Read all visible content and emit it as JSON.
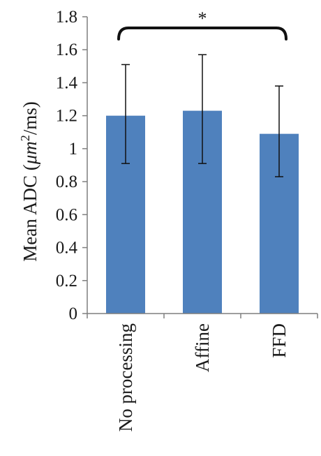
{
  "chart_data": {
    "type": "bar",
    "categories": [
      "No processing",
      "Affine",
      "FFD"
    ],
    "values": [
      1.2,
      1.23,
      1.09
    ],
    "error_low": [
      0.91,
      0.91,
      0.83
    ],
    "error_high": [
      1.51,
      1.57,
      1.38
    ],
    "ylabel_main": "Mean ADC (",
    "ylabel_unit": "μm",
    "ylabel_sup": "2",
    "ylabel_tail": "/ms)",
    "ylim": [
      0,
      1.8
    ],
    "yticks": [
      "0",
      "0.2",
      "0.4",
      "0.6",
      "0.8",
      "1",
      "1.2",
      "1.4",
      "1.6",
      "1.8"
    ],
    "bar_color": "#4f81bd",
    "grid": false,
    "significance": {
      "from": "No processing",
      "to": "FFD",
      "label": "*"
    }
  }
}
